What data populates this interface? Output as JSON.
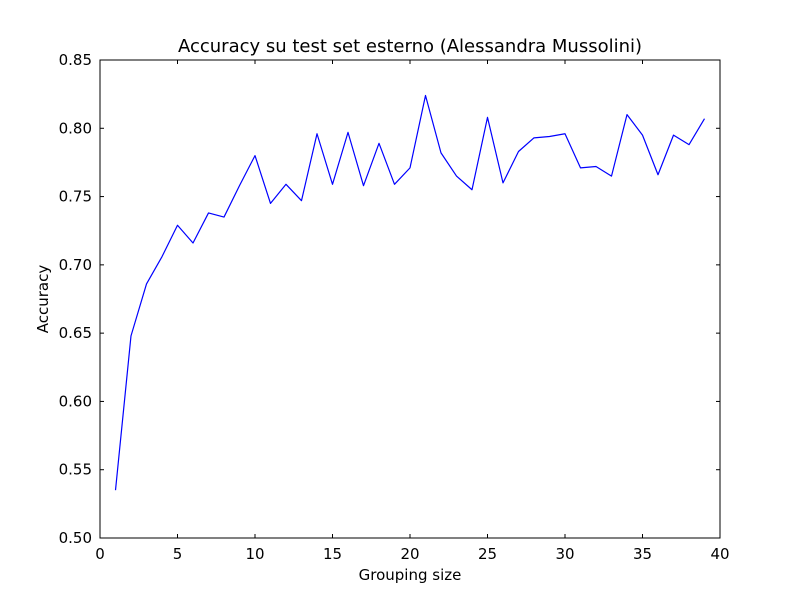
{
  "chart_data": {
    "type": "line",
    "title": "Accuracy su test set esterno (Alessandra Mussolini)",
    "xlabel": "Grouping size",
    "ylabel": "Accuracy",
    "xlim": [
      0,
      40
    ],
    "ylim": [
      0.5,
      0.85
    ],
    "xticks": [
      0,
      5,
      10,
      15,
      20,
      25,
      30,
      35,
      40
    ],
    "xtick_labels": [
      "0",
      "5",
      "10",
      "15",
      "20",
      "25",
      "30",
      "35",
      "40"
    ],
    "yticks": [
      0.5,
      0.55,
      0.6,
      0.65,
      0.7,
      0.75,
      0.8,
      0.85
    ],
    "ytick_labels": [
      "0.50",
      "0.55",
      "0.60",
      "0.65",
      "0.70",
      "0.75",
      "0.80",
      "0.85"
    ],
    "grid": false,
    "series": [
      {
        "color": "#0000ff",
        "x": [
          1,
          2,
          3,
          4,
          5,
          6,
          7,
          8,
          9,
          10,
          11,
          12,
          13,
          14,
          15,
          16,
          17,
          18,
          19,
          20,
          21,
          22,
          23,
          24,
          25,
          26,
          27,
          28,
          29,
          30,
          31,
          32,
          33,
          34,
          35,
          36,
          37,
          38,
          39
        ],
        "y": [
          0.535,
          0.648,
          0.686,
          0.706,
          0.729,
          0.716,
          0.738,
          0.735,
          0.758,
          0.78,
          0.745,
          0.759,
          0.747,
          0.796,
          0.759,
          0.797,
          0.758,
          0.789,
          0.759,
          0.771,
          0.824,
          0.782,
          0.765,
          0.755,
          0.808,
          0.76,
          0.783,
          0.793,
          0.794,
          0.796,
          0.771,
          0.772,
          0.765,
          0.81,
          0.795,
          0.766,
          0.795,
          0.788,
          0.807
        ]
      }
    ]
  }
}
